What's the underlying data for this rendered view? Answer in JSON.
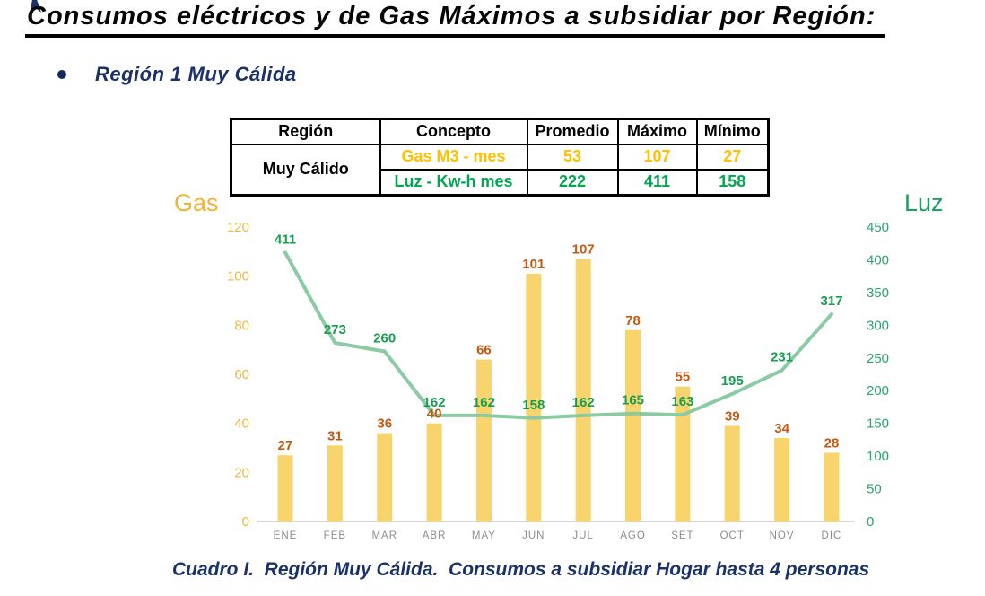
{
  "page": {
    "title": "Consumos eléctricos y de Gas Máximos a subsidiar por Región:",
    "bullet_label": "Región 1 Muy Cálida",
    "caption": "Cuadro I.  Región Muy Cálida.  Consumos a subsidiar Hogar hasta 4 personas"
  },
  "table": {
    "headers": [
      "Región",
      "Concepto",
      "Promedio",
      "Máximo",
      "Mínimo"
    ],
    "region_label": "Muy Cálido",
    "rows": [
      {
        "concepto": "Gas M3 - mes",
        "promedio": "53",
        "maximo": "107",
        "minimo": "27"
      },
      {
        "concepto": "Luz - Kw-h mes",
        "promedio": "222",
        "maximo": "411",
        "minimo": "158"
      }
    ]
  },
  "chart_data": {
    "type": "bar+line",
    "categories": [
      "ENE",
      "FEB",
      "MAR",
      "ABR",
      "MAY",
      "JUN",
      "JUL",
      "AGO",
      "SET",
      "OCT",
      "NOV",
      "DIC"
    ],
    "series": [
      {
        "name": "Gas",
        "type": "bar",
        "axis": "left",
        "values": [
          27,
          31,
          36,
          40,
          66,
          101,
          107,
          78,
          55,
          39,
          34,
          28
        ]
      },
      {
        "name": "Luz",
        "type": "line",
        "axis": "right",
        "values": [
          411,
          273,
          260,
          162,
          162,
          158,
          162,
          165,
          163,
          195,
          231,
          317
        ]
      }
    ],
    "left_axis": {
      "title": "Gas",
      "min": 0,
      "max": 120,
      "step": 20,
      "ticks": [
        0,
        20,
        40,
        60,
        80,
        100,
        120
      ]
    },
    "right_axis": {
      "title": "Luz",
      "min": 0,
      "max": 450,
      "step": 50,
      "ticks": [
        0,
        50,
        100,
        150,
        200,
        250,
        300,
        350,
        400,
        450
      ]
    },
    "grid": false,
    "legend_position": "none",
    "data_labels": true
  },
  "colors": {
    "navy": "#1b3268",
    "table_gas": "#FFC000",
    "table_luz": "#00A651",
    "bar_fill": "#F8D46C",
    "bar_label": "#C45911",
    "line_stroke": "#8BCBA4",
    "line_label": "#189C51",
    "left_axis_tick": "#E3B94A",
    "left_axis_title": "#F2B438",
    "right_axis_tick": "#2CA36D",
    "right_axis_title": "#18A05F",
    "month_label": "#8C8C8C",
    "axis_line": "#C6C6C6"
  }
}
